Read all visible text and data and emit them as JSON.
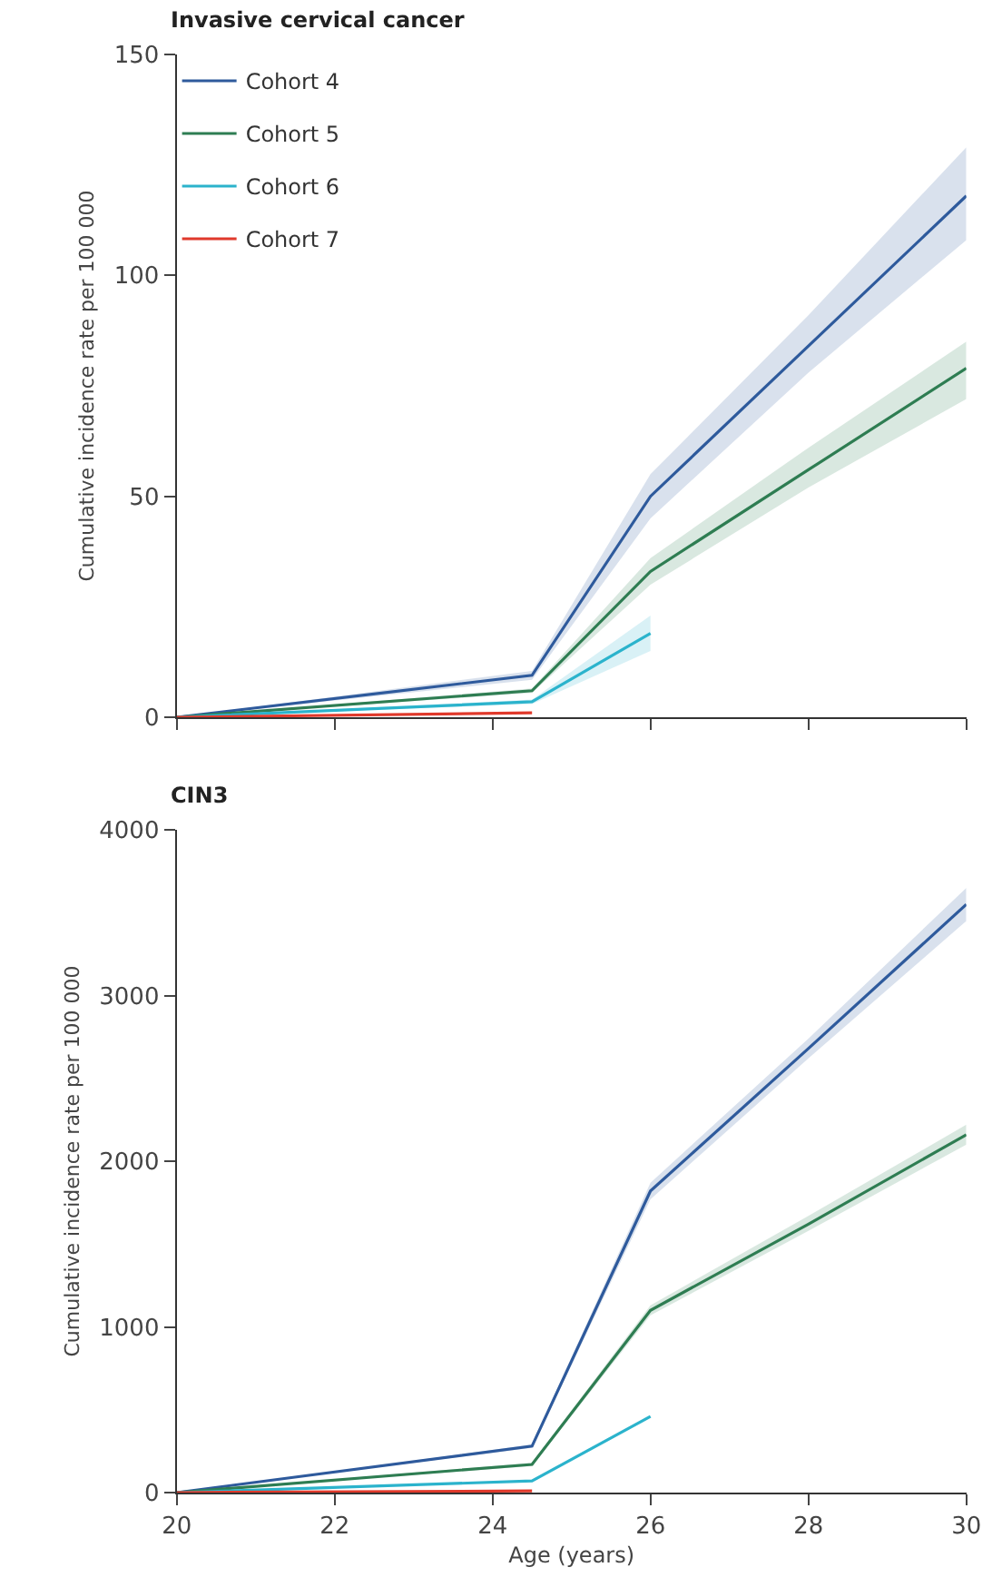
{
  "chart_data": [
    {
      "type": "line",
      "title": "Invasive cervical cancer",
      "ylabel": "Cumulative incidence rate per 100 000",
      "xlim": [
        20,
        30
      ],
      "xticks": [
        {
          "value": 20,
          "label": null
        },
        {
          "value": 22,
          "label": null
        },
        {
          "value": 24,
          "label": null
        },
        {
          "value": 26,
          "label": null
        },
        {
          "value": 28,
          "label": null
        },
        {
          "value": 30,
          "label": null
        }
      ],
      "ylim": [
        0,
        150
      ],
      "yticks": [
        0,
        50,
        100,
        150
      ],
      "tick_labels": "y",
      "legend": "top left",
      "marker": "none",
      "line_style": "solid",
      "series": [
        {
          "name": "Cohort 4",
          "color": "#2e5a9c",
          "x": [
            20,
            24.5,
            26,
            28,
            30
          ],
          "values": [
            0,
            9.5,
            50,
            84,
            118
          ],
          "lower": [
            0,
            8.5,
            45,
            78,
            108
          ],
          "upper": [
            0,
            10.5,
            55,
            91,
            129
          ]
        },
        {
          "name": "Cohort 5",
          "color": "#2e7d52",
          "x": [
            20,
            24.5,
            26,
            28,
            30
          ],
          "values": [
            0,
            6,
            33,
            56,
            79
          ],
          "lower": [
            0,
            5.5,
            30,
            52,
            72
          ],
          "upper": [
            0,
            6.5,
            36,
            61,
            85
          ]
        },
        {
          "name": "Cohort 6",
          "color": "#2bb3cc",
          "x": [
            20,
            24.5,
            26
          ],
          "values": [
            0,
            3.5,
            19
          ],
          "lower": [
            0,
            3,
            15
          ],
          "upper": [
            0,
            4,
            23
          ]
        },
        {
          "name": "Cohort 7",
          "color": "#e0392b",
          "x": [
            20,
            24.5
          ],
          "values": [
            0,
            1
          ]
        }
      ]
    },
    {
      "type": "line",
      "title": "CIN3",
      "xlabel": "Age (years)",
      "ylabel": "Cumulative incidence rate per 100 000",
      "xlim": [
        20,
        30
      ],
      "xticks": [
        20,
        22,
        24,
        26,
        28,
        30
      ],
      "ylim": [
        0,
        4000
      ],
      "yticks": [
        0,
        1000,
        2000,
        3000,
        4000
      ],
      "legend": false,
      "marker": "none",
      "line_style": "solid",
      "series": [
        {
          "color": "#2e5a9c",
          "x": [
            20,
            24.5,
            26,
            28,
            30
          ],
          "values": [
            0,
            280,
            1820,
            2680,
            3550
          ],
          "lower": [
            0,
            270,
            1770,
            2620,
            3450
          ],
          "upper": [
            0,
            290,
            1870,
            2740,
            3650
          ]
        },
        {
          "color": "#2e7d52",
          "x": [
            20,
            24.5,
            26,
            28,
            30
          ],
          "values": [
            0,
            170,
            1100,
            1620,
            2160
          ],
          "lower": [
            0,
            160,
            1070,
            1580,
            2100
          ],
          "upper": [
            0,
            180,
            1130,
            1670,
            2220
          ]
        },
        {
          "color": "#2bb3cc",
          "x": [
            20,
            24.5,
            26
          ],
          "values": [
            0,
            70,
            460
          ]
        },
        {
          "color": "#e0392b",
          "x": [
            20,
            24.5
          ],
          "values": [
            0,
            10
          ]
        }
      ]
    }
  ]
}
